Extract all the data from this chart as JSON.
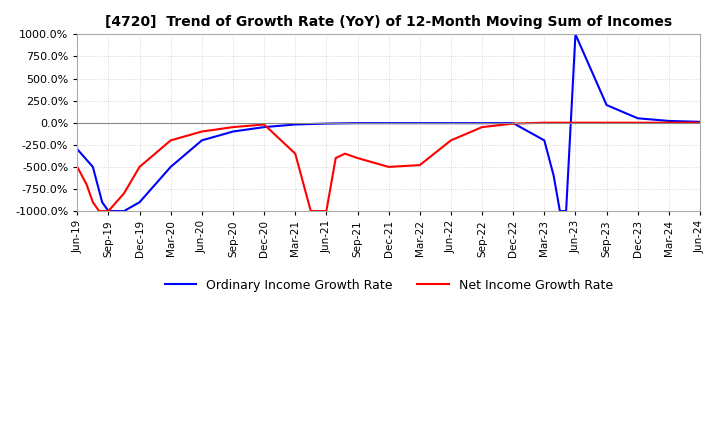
{
  "title": "[4720]  Trend of Growth Rate (YoY) of 12-Month Moving Sum of Incomes",
  "ylim": [
    -1000,
    1000
  ],
  "yticks": [
    -1000,
    -750,
    -500,
    -250,
    0,
    250,
    500,
    750,
    1000
  ],
  "background_color": "#ffffff",
  "plot_bg_color": "#ffffff",
  "grid_color": "#cccccc",
  "ordinary_color": "#0000ff",
  "net_color": "#ff0000",
  "legend_ordinary": "Ordinary Income Growth Rate",
  "legend_net": "Net Income Growth Rate",
  "x_labels": [
    "Jun-19",
    "Sep-19",
    "Dec-19",
    "Mar-20",
    "Jun-20",
    "Sep-20",
    "Dec-20",
    "Mar-21",
    "Jun-21",
    "Sep-21",
    "Dec-21",
    "Mar-22",
    "Jun-22",
    "Sep-22",
    "Dec-22",
    "Mar-23",
    "Jun-23",
    "Sep-23",
    "Dec-23",
    "Mar-24",
    "Jun-24"
  ],
  "ordinary_x": [
    0.0,
    0.5,
    0.65,
    0.8,
    1.0,
    1.5,
    2.0,
    3.0,
    4.0,
    5.0,
    6.0,
    7.0,
    8.0,
    9.0,
    10.0,
    11.0,
    12.0,
    13.0,
    14.0,
    15.0,
    15.3,
    15.5,
    15.7,
    16.0,
    17.0,
    18.0,
    19.0,
    20.0
  ],
  "ordinary_y": [
    -300,
    -500,
    -700,
    -900,
    -1000,
    -1000,
    -900,
    -500,
    -200,
    -100,
    -50,
    -20,
    -10,
    -5,
    -5,
    -5,
    -5,
    -5,
    -5,
    -200,
    -600,
    -1000,
    -1000,
    1000,
    200,
    50,
    20,
    10
  ],
  "net_x": [
    0.0,
    0.3,
    0.5,
    0.7,
    1.0,
    1.5,
    2.0,
    3.0,
    4.0,
    5.0,
    6.0,
    7.0,
    7.5,
    8.0,
    8.3,
    8.6,
    9.0,
    10.0,
    11.0,
    12.0,
    13.0,
    14.0,
    15.0,
    16.0,
    17.0,
    18.0,
    19.0,
    20.0
  ],
  "net_y": [
    -500,
    -700,
    -900,
    -1000,
    -1000,
    -800,
    -500,
    -200,
    -100,
    -50,
    -20,
    -350,
    -1000,
    -1000,
    -400,
    -350,
    -400,
    -500,
    -480,
    -200,
    -50,
    -10,
    0,
    0,
    0,
    0,
    0,
    0
  ]
}
